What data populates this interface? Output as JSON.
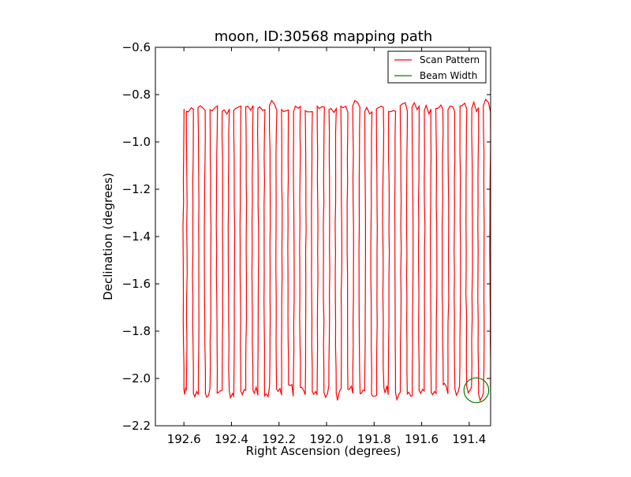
{
  "chart_data": {
    "type": "line",
    "title": "moon, ID:30568 mapping path",
    "xlabel": "Right Ascension (degrees)",
    "ylabel": "Declination (degrees)",
    "xlim": [
      192.72,
      191.31
    ],
    "ylim": [
      -2.2,
      -0.6
    ],
    "x_inverted": true,
    "x_ticks": [
      192.6,
      192.4,
      192.2,
      192.0,
      191.8,
      191.6,
      191.4
    ],
    "x_tick_labels": [
      "192.6",
      "192.4",
      "192.2",
      "192.0",
      "191.8",
      "191.6",
      "191.4"
    ],
    "y_ticks": [
      -0.6,
      -0.8,
      -1.0,
      -1.2,
      -1.4,
      -1.6,
      -1.8,
      -2.0,
      -2.2
    ],
    "y_tick_labels": [
      "−0.6",
      "−0.8",
      "−1.0",
      "−1.2",
      "−1.4",
      "−1.6",
      "−1.8",
      "−2.0",
      "−2.2"
    ],
    "grid": false,
    "legend_position": "top-right",
    "legend": [
      {
        "label": "Scan Pattern",
        "type": "line",
        "color": "#ff0000"
      },
      {
        "label": "Beam Width",
        "type": "line",
        "color": "#008000"
      }
    ],
    "scan_pattern": {
      "name": "Scan Pattern",
      "color": "#ff0000",
      "leg_ra": [
        192.6,
        192.59,
        192.56,
        192.54,
        192.51,
        192.49,
        192.46,
        192.44,
        192.41,
        192.39,
        192.36,
        192.34,
        192.31,
        192.29,
        192.26,
        192.24,
        192.21,
        192.19,
        192.16,
        192.14,
        192.11,
        192.09,
        192.06,
        192.04,
        192.01,
        191.99,
        191.96,
        191.94,
        191.91,
        191.89,
        191.86,
        191.84,
        191.81,
        191.79,
        191.76,
        191.74,
        191.71,
        191.69,
        191.66,
        191.64,
        191.61,
        191.59,
        191.56,
        191.54,
        191.51,
        191.49,
        191.46,
        191.44,
        191.41,
        191.39,
        191.36,
        191.34,
        191.31
      ],
      "dec_top": -0.86,
      "dec_bottom": -2.05,
      "start": [
        192.6,
        -0.89
      ],
      "end": [
        191.31,
        -1.85
      ]
    },
    "beam_width": {
      "name": "Beam Width",
      "color": "#008000",
      "center": [
        191.37,
        -2.05
      ],
      "radius_deg": 0.052
    }
  }
}
